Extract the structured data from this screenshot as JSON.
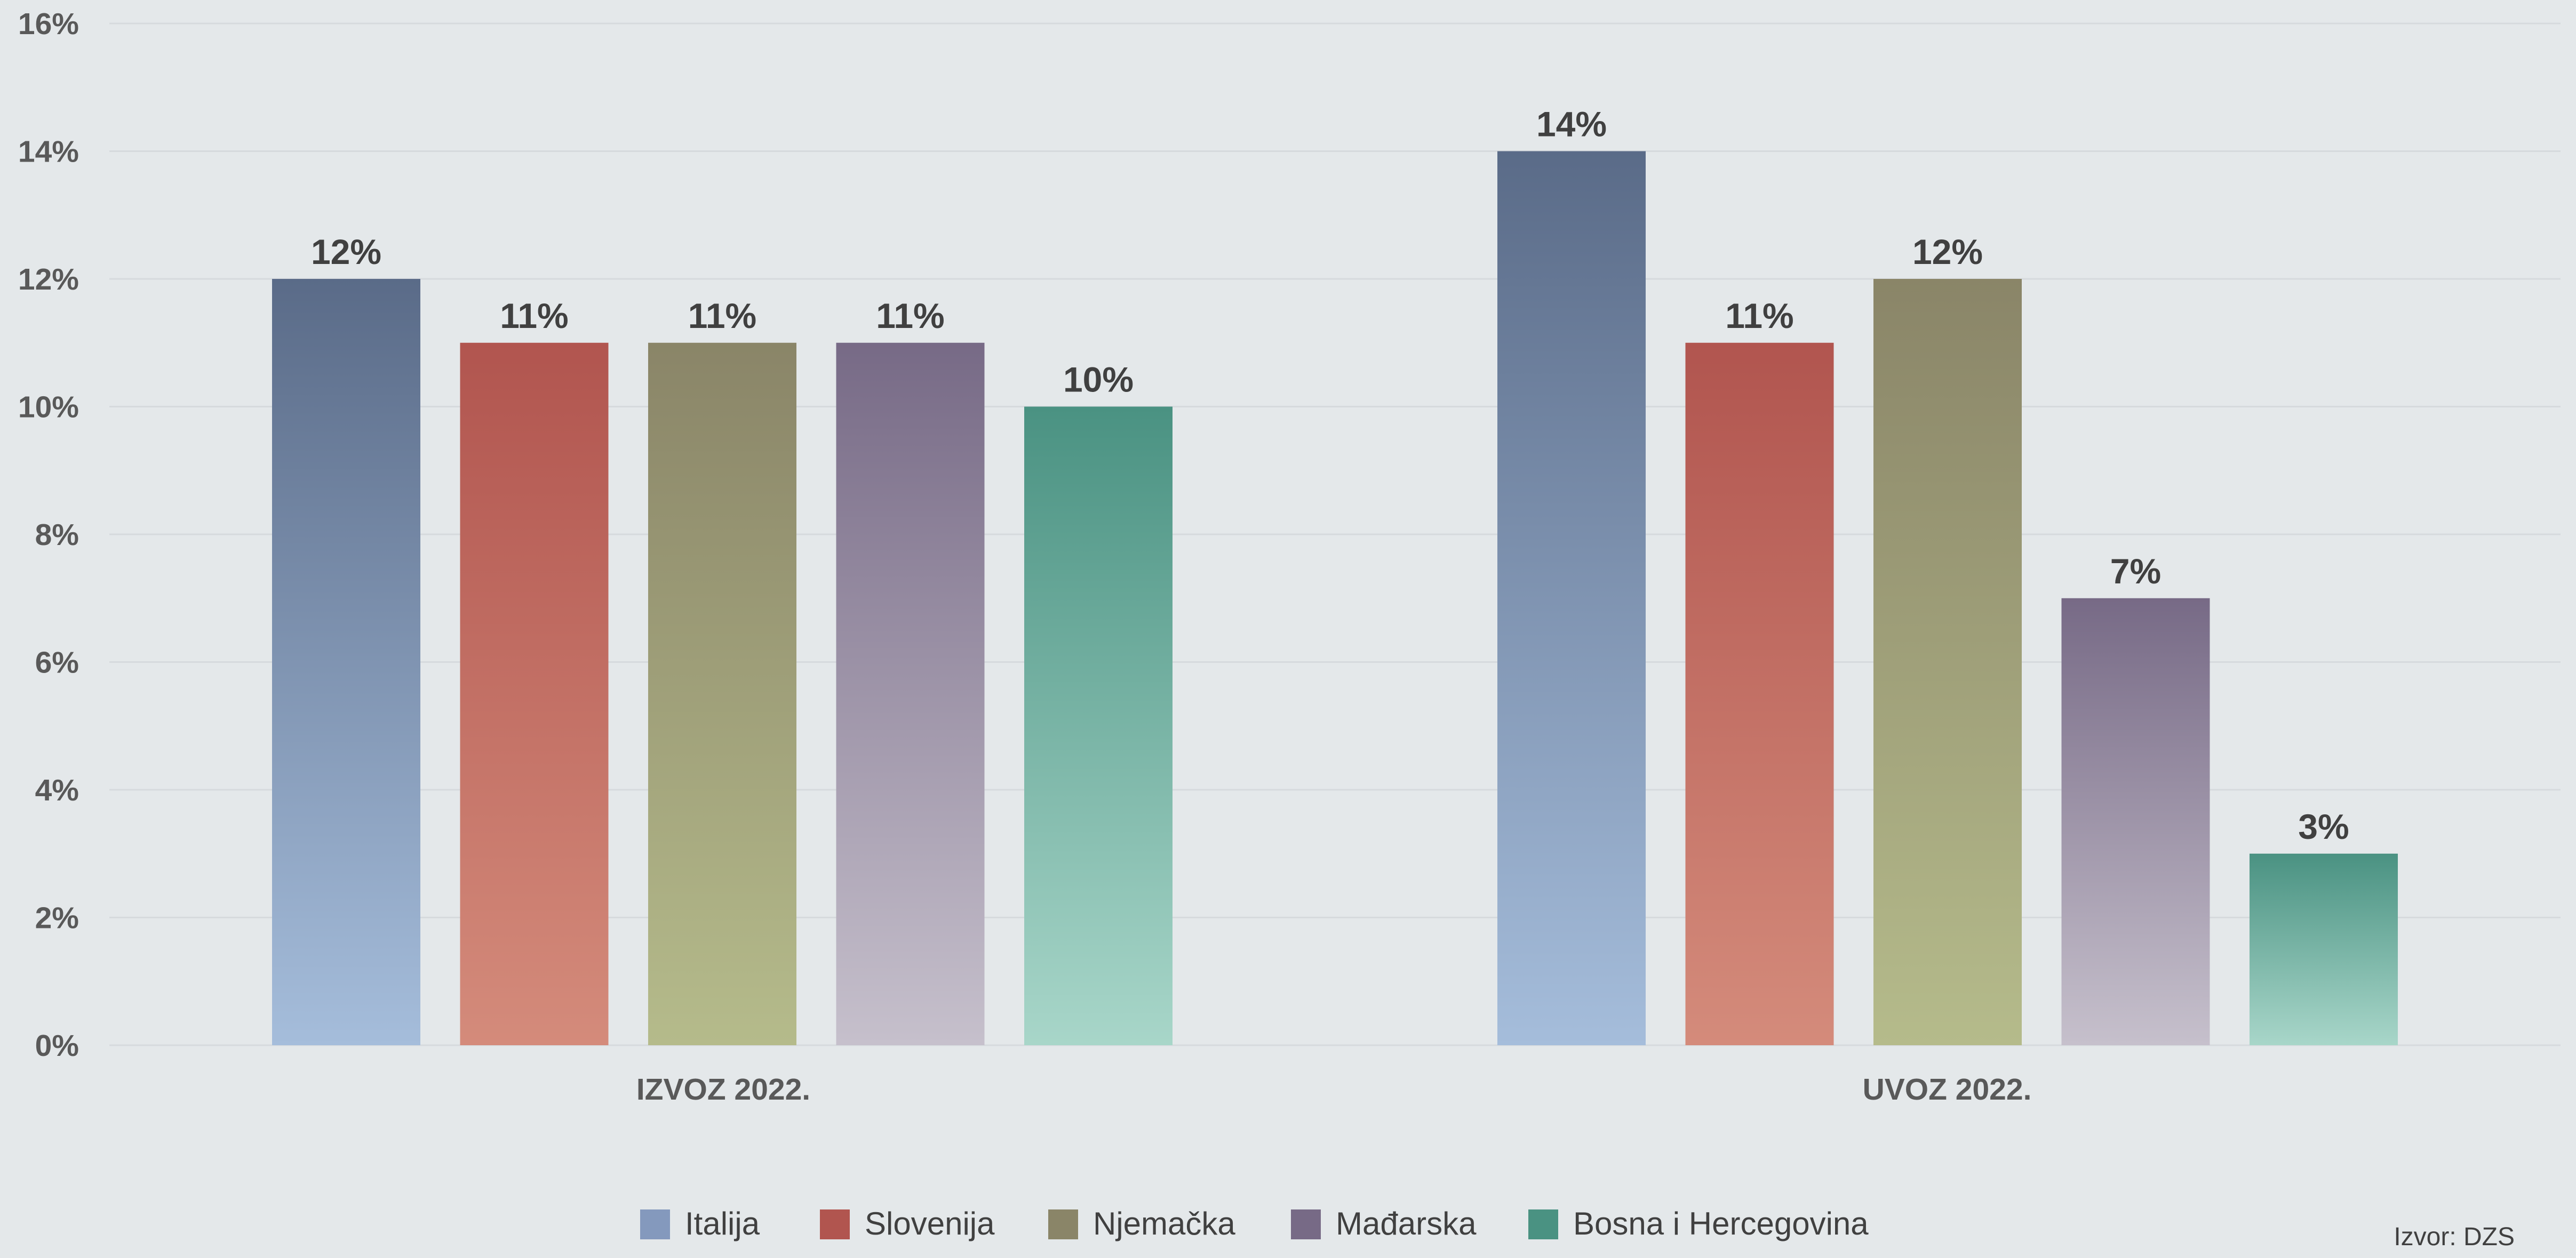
{
  "chart_data": {
    "type": "bar",
    "categories": [
      "IZVOZ 2022.",
      "UVOZ 2022."
    ],
    "series": [
      {
        "name": "Italija",
        "values": [
          12,
          14
        ],
        "labels": [
          "12%",
          "14%"
        ],
        "color_top": "#5a6b88",
        "color_bottom": "#a5bddb"
      },
      {
        "name": "Slovenija",
        "values": [
          11,
          11
        ],
        "labels": [
          "11%",
          "11%"
        ],
        "color_top": "#b1554f",
        "color_bottom": "#d48b7b"
      },
      {
        "name": "Njemačka",
        "values": [
          11,
          12
        ],
        "labels": [
          "11%",
          "12%"
        ],
        "color_top": "#8a8568",
        "color_bottom": "#b5bb8b"
      },
      {
        "name": "Mađarska",
        "values": [
          11,
          7
        ],
        "labels": [
          "11%",
          "7%"
        ],
        "color_top": "#776a86",
        "color_bottom": "#c6c0cc"
      },
      {
        "name": "Bosna i Hercegovina",
        "values": [
          10,
          3
        ],
        "labels": [
          "10%",
          "3%"
        ],
        "color_top": "#4a9282",
        "color_bottom": "#a8d6c9"
      }
    ],
    "y_ticks": [
      "0%",
      "2%",
      "4%",
      "6%",
      "8%",
      "10%",
      "12%",
      "14%",
      "16%"
    ],
    "ylim": [
      0,
      16
    ],
    "grid": true,
    "legend_position": "bottom",
    "source": "Izvor: DZS"
  }
}
